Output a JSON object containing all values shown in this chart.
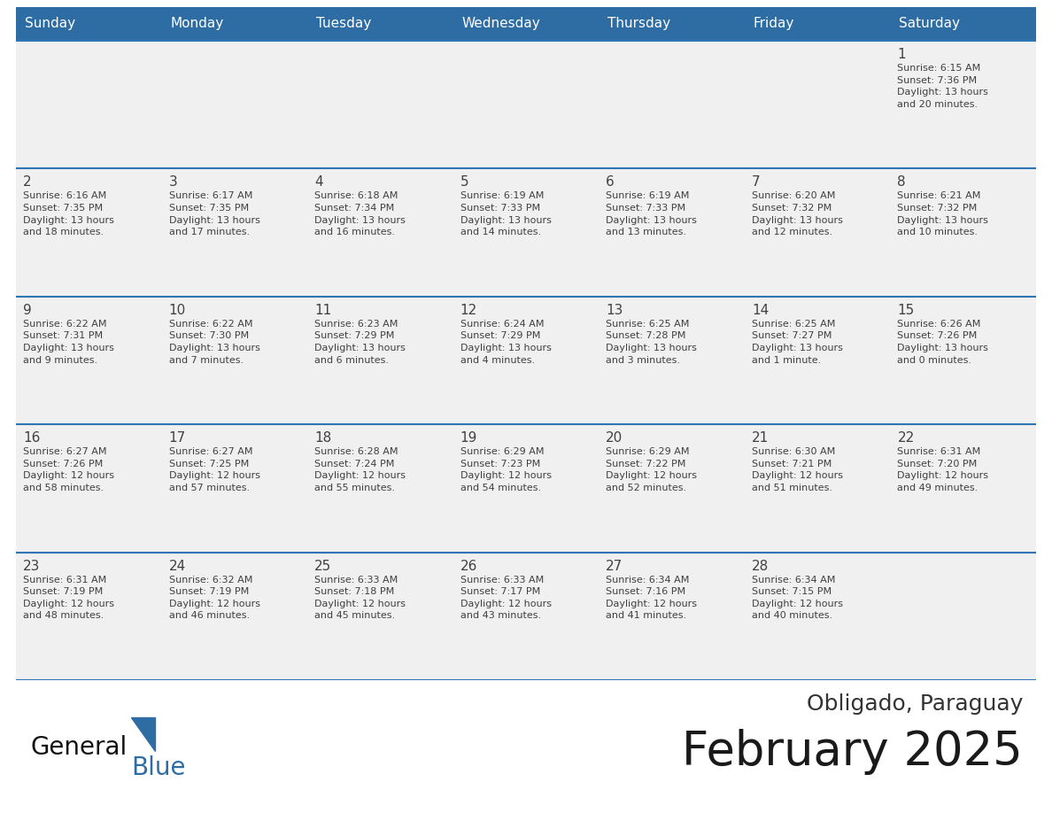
{
  "title": "February 2025",
  "subtitle": "Obligado, Paraguay",
  "days_of_week": [
    "Sunday",
    "Monday",
    "Tuesday",
    "Wednesday",
    "Thursday",
    "Friday",
    "Saturday"
  ],
  "header_bg": "#2E6DA4",
  "header_text_color": "#FFFFFF",
  "cell_bg": "#F0F0F0",
  "border_color": "#2E75B6",
  "text_color": "#404040",
  "title_color": "#1a1a1a",
  "subtitle_color": "#333333",
  "logo_general_color": "#111111",
  "logo_blue_color": "#2E6DA4",
  "calendar_data": [
    [
      {
        "day": null,
        "info": null
      },
      {
        "day": null,
        "info": null
      },
      {
        "day": null,
        "info": null
      },
      {
        "day": null,
        "info": null
      },
      {
        "day": null,
        "info": null
      },
      {
        "day": null,
        "info": null
      },
      {
        "day": 1,
        "info": "Sunrise: 6:15 AM\nSunset: 7:36 PM\nDaylight: 13 hours\nand 20 minutes."
      }
    ],
    [
      {
        "day": 2,
        "info": "Sunrise: 6:16 AM\nSunset: 7:35 PM\nDaylight: 13 hours\nand 18 minutes."
      },
      {
        "day": 3,
        "info": "Sunrise: 6:17 AM\nSunset: 7:35 PM\nDaylight: 13 hours\nand 17 minutes."
      },
      {
        "day": 4,
        "info": "Sunrise: 6:18 AM\nSunset: 7:34 PM\nDaylight: 13 hours\nand 16 minutes."
      },
      {
        "day": 5,
        "info": "Sunrise: 6:19 AM\nSunset: 7:33 PM\nDaylight: 13 hours\nand 14 minutes."
      },
      {
        "day": 6,
        "info": "Sunrise: 6:19 AM\nSunset: 7:33 PM\nDaylight: 13 hours\nand 13 minutes."
      },
      {
        "day": 7,
        "info": "Sunrise: 6:20 AM\nSunset: 7:32 PM\nDaylight: 13 hours\nand 12 minutes."
      },
      {
        "day": 8,
        "info": "Sunrise: 6:21 AM\nSunset: 7:32 PM\nDaylight: 13 hours\nand 10 minutes."
      }
    ],
    [
      {
        "day": 9,
        "info": "Sunrise: 6:22 AM\nSunset: 7:31 PM\nDaylight: 13 hours\nand 9 minutes."
      },
      {
        "day": 10,
        "info": "Sunrise: 6:22 AM\nSunset: 7:30 PM\nDaylight: 13 hours\nand 7 minutes."
      },
      {
        "day": 11,
        "info": "Sunrise: 6:23 AM\nSunset: 7:29 PM\nDaylight: 13 hours\nand 6 minutes."
      },
      {
        "day": 12,
        "info": "Sunrise: 6:24 AM\nSunset: 7:29 PM\nDaylight: 13 hours\nand 4 minutes."
      },
      {
        "day": 13,
        "info": "Sunrise: 6:25 AM\nSunset: 7:28 PM\nDaylight: 13 hours\nand 3 minutes."
      },
      {
        "day": 14,
        "info": "Sunrise: 6:25 AM\nSunset: 7:27 PM\nDaylight: 13 hours\nand 1 minute."
      },
      {
        "day": 15,
        "info": "Sunrise: 6:26 AM\nSunset: 7:26 PM\nDaylight: 13 hours\nand 0 minutes."
      }
    ],
    [
      {
        "day": 16,
        "info": "Sunrise: 6:27 AM\nSunset: 7:26 PM\nDaylight: 12 hours\nand 58 minutes."
      },
      {
        "day": 17,
        "info": "Sunrise: 6:27 AM\nSunset: 7:25 PM\nDaylight: 12 hours\nand 57 minutes."
      },
      {
        "day": 18,
        "info": "Sunrise: 6:28 AM\nSunset: 7:24 PM\nDaylight: 12 hours\nand 55 minutes."
      },
      {
        "day": 19,
        "info": "Sunrise: 6:29 AM\nSunset: 7:23 PM\nDaylight: 12 hours\nand 54 minutes."
      },
      {
        "day": 20,
        "info": "Sunrise: 6:29 AM\nSunset: 7:22 PM\nDaylight: 12 hours\nand 52 minutes."
      },
      {
        "day": 21,
        "info": "Sunrise: 6:30 AM\nSunset: 7:21 PM\nDaylight: 12 hours\nand 51 minutes."
      },
      {
        "day": 22,
        "info": "Sunrise: 6:31 AM\nSunset: 7:20 PM\nDaylight: 12 hours\nand 49 minutes."
      }
    ],
    [
      {
        "day": 23,
        "info": "Sunrise: 6:31 AM\nSunset: 7:19 PM\nDaylight: 12 hours\nand 48 minutes."
      },
      {
        "day": 24,
        "info": "Sunrise: 6:32 AM\nSunset: 7:19 PM\nDaylight: 12 hours\nand 46 minutes."
      },
      {
        "day": 25,
        "info": "Sunrise: 6:33 AM\nSunset: 7:18 PM\nDaylight: 12 hours\nand 45 minutes."
      },
      {
        "day": 26,
        "info": "Sunrise: 6:33 AM\nSunset: 7:17 PM\nDaylight: 12 hours\nand 43 minutes."
      },
      {
        "day": 27,
        "info": "Sunrise: 6:34 AM\nSunset: 7:16 PM\nDaylight: 12 hours\nand 41 minutes."
      },
      {
        "day": 28,
        "info": "Sunrise: 6:34 AM\nSunset: 7:15 PM\nDaylight: 12 hours\nand 40 minutes."
      },
      {
        "day": null,
        "info": null
      }
    ]
  ]
}
